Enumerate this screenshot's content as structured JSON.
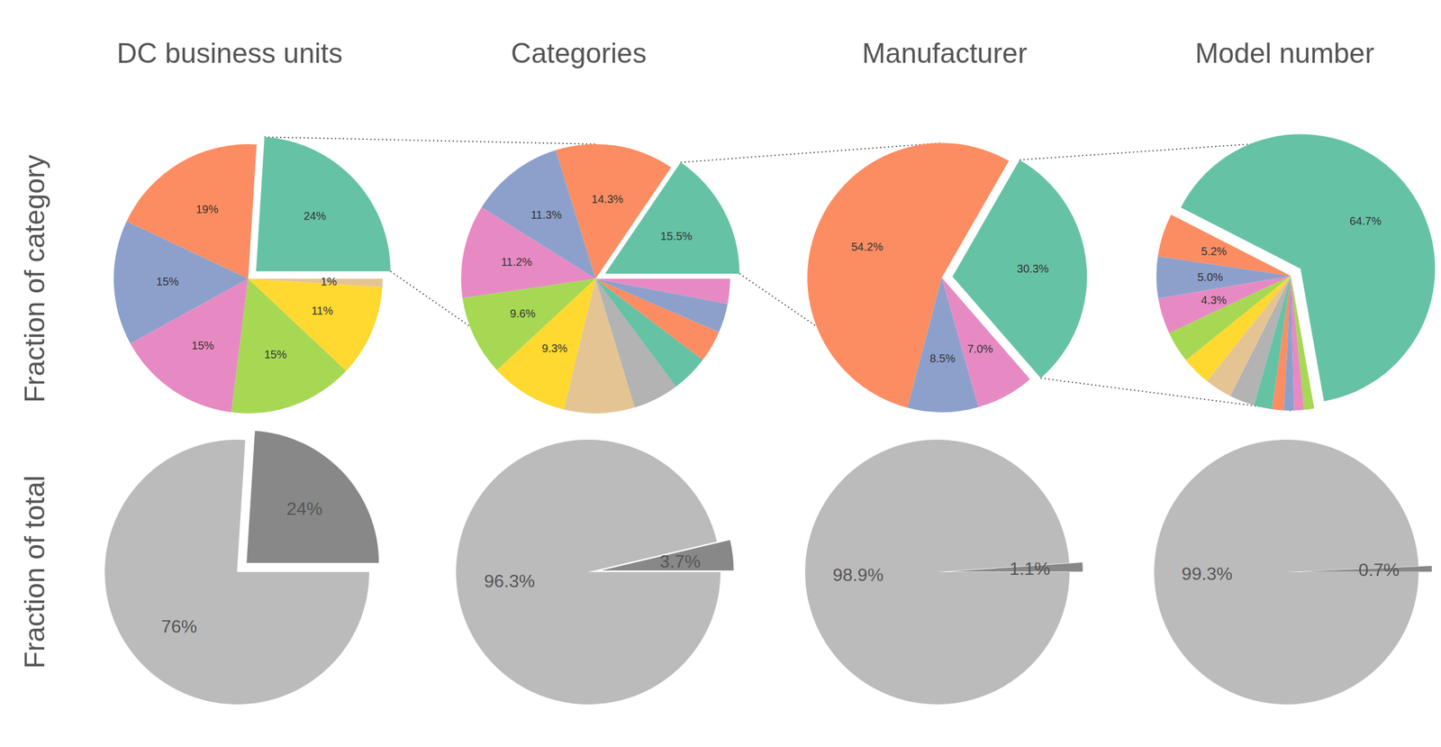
{
  "chart_data": [
    {
      "type": "pie",
      "title": "DC business units",
      "y_label": "Fraction of category",
      "values": [
        24,
        19,
        15,
        15,
        15,
        11,
        1
      ],
      "value_labels": [
        "24%",
        "19%",
        "15%",
        "15%",
        "15%",
        "11%",
        "1%"
      ],
      "colors": [
        "#66c2a5",
        "#fc8d62",
        "#8da0cb",
        "#e78ac3",
        "#a6d854",
        "#ffd92f",
        "#e5c494"
      ],
      "data_labels": true
    },
    {
      "type": "pie",
      "title": "Categories",
      "values": [
        15.5,
        14.3,
        11.3,
        11.2,
        9.6,
        9.3,
        8.5,
        5.5,
        4.5,
        3.8,
        3.5,
        3.0
      ],
      "value_labels": [
        "15.5%",
        "14.3%",
        "11.3%",
        "11.2%",
        "9.6%",
        "9.3%",
        null,
        null,
        null,
        null,
        null,
        null
      ],
      "colors": [
        "#66c2a5",
        "#fc8d62",
        "#8da0cb",
        "#e78ac3",
        "#a6d854",
        "#ffd92f",
        "#e5c494",
        "#b3b3b3",
        "#66c2a5",
        "#fc8d62",
        "#8da0cb",
        "#e78ac3"
      ],
      "data_labels": true
    },
    {
      "type": "pie",
      "title": "Manufacturer",
      "values": [
        30.3,
        54.2,
        8.5,
        7.0
      ],
      "value_labels": [
        "30.3%",
        "54.2%",
        "8.5%",
        "7.0%"
      ],
      "colors": [
        "#66c2a5",
        "#fc8d62",
        "#8da0cb",
        "#e78ac3"
      ],
      "data_labels": true
    },
    {
      "type": "pie",
      "title": "Model number",
      "values": [
        64.7,
        5.2,
        5.0,
        4.3,
        3.8,
        3.5,
        3.3,
        3.0,
        2.2,
        1.4,
        1.2,
        1.2,
        1.2
      ],
      "value_labels": [
        "64.7%",
        "5.2%",
        "5.0%",
        "4.3%",
        null,
        null,
        null,
        null,
        null,
        null,
        null,
        null,
        null
      ],
      "colors": [
        "#66c2a5",
        "#fc8d62",
        "#8da0cb",
        "#e78ac3",
        "#a6d854",
        "#ffd92f",
        "#e5c494",
        "#b3b3b3",
        "#66c2a5",
        "#fc8d62",
        "#8da0cb",
        "#e78ac3",
        "#a6d854"
      ],
      "data_labels": true
    },
    {
      "type": "pie",
      "y_label": "Fraction of total",
      "values": [
        24,
        76
      ],
      "value_labels": [
        "24%",
        "76%"
      ],
      "colors": [
        "#888888",
        "#bbbbbb"
      ],
      "data_labels": true
    },
    {
      "type": "pie",
      "values": [
        3.7,
        96.3
      ],
      "value_labels": [
        "3.7%",
        "96.3%"
      ],
      "colors": [
        "#888888",
        "#bbbbbb"
      ],
      "data_labels": true
    },
    {
      "type": "pie",
      "values": [
        1.1,
        98.9
      ],
      "value_labels": [
        "1.1%",
        "98.9%"
      ],
      "colors": [
        "#888888",
        "#bbbbbb"
      ],
      "data_labels": true
    },
    {
      "type": "pie",
      "values": [
        0.7,
        99.3
      ],
      "value_labels": [
        "0.7%",
        "99.3%"
      ],
      "colors": [
        "#888888",
        "#bbbbbb"
      ],
      "data_labels": true
    }
  ]
}
